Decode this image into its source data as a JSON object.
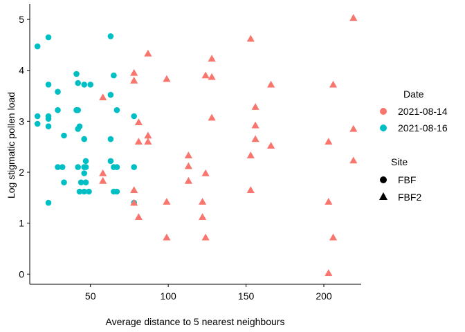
{
  "chart_data": {
    "type": "scatter",
    "title": "",
    "xlabel": "Average distance to 5 nearest neighbours",
    "ylabel": "Log stigmatic pollen load",
    "xlim": [
      11,
      224
    ],
    "ylim": [
      -0.2,
      5.3
    ],
    "x_ticks": [
      50,
      100,
      150,
      200
    ],
    "y_ticks": [
      0,
      1,
      2,
      3,
      4,
      5
    ],
    "grid": false,
    "legend_placement": "right",
    "legends": {
      "date": {
        "title": "Date",
        "entries": [
          {
            "label": "2021-08-14",
            "color": "#F8766D"
          },
          {
            "label": "2021-08-16",
            "color": "#00BFC4"
          }
        ]
      },
      "site": {
        "title": "Site",
        "entries": [
          {
            "label": "FBF",
            "shape": "circle"
          },
          {
            "label": "FBF2",
            "shape": "triangle"
          }
        ]
      }
    },
    "series": [
      {
        "date": "2021-08-14",
        "site": "FBF",
        "color": "#F8766D",
        "shape": "circle",
        "points": []
      },
      {
        "date": "2021-08-16",
        "site": "FBF",
        "color": "#00BFC4",
        "shape": "circle",
        "points": [
          [
            16,
            4.47
          ],
          [
            16,
            3.1
          ],
          [
            16,
            2.95
          ],
          [
            23,
            4.65
          ],
          [
            23,
            3.72
          ],
          [
            23,
            3.1
          ],
          [
            23,
            3.05
          ],
          [
            23,
            2.9
          ],
          [
            23,
            1.4
          ],
          [
            29,
            3.58
          ],
          [
            29,
            3.22
          ],
          [
            29,
            2.1
          ],
          [
            32,
            2.1
          ],
          [
            33,
            2.72
          ],
          [
            33,
            1.8
          ],
          [
            41,
            3.93
          ],
          [
            41,
            3.22
          ],
          [
            42,
            3.75
          ],
          [
            42,
            3.22
          ],
          [
            42,
            2.85
          ],
          [
            42,
            2.1
          ],
          [
            43,
            2.9
          ],
          [
            43,
            1.62
          ],
          [
            44,
            1.8
          ],
          [
            46,
            3.72
          ],
          [
            46,
            2.65
          ],
          [
            46,
            2.1
          ],
          [
            46,
            1.98
          ],
          [
            46,
            1.62
          ],
          [
            47,
            2.22
          ],
          [
            47,
            2.1
          ],
          [
            47,
            1.8
          ],
          [
            49,
            1.62
          ],
          [
            50,
            3.72
          ],
          [
            63,
            4.67
          ],
          [
            63,
            3.52
          ],
          [
            63,
            2.65
          ],
          [
            63,
            2.22
          ],
          [
            65,
            3.9
          ],
          [
            65,
            2.1
          ],
          [
            65,
            1.62
          ],
          [
            67,
            3.22
          ],
          [
            67,
            2.1
          ],
          [
            67,
            1.62
          ],
          [
            78,
            3.1
          ],
          [
            78,
            2.1
          ],
          [
            78,
            1.4
          ]
        ]
      },
      {
        "date": "2021-08-14",
        "site": "FBF2",
        "color": "#F8766D",
        "shape": "triangle",
        "points": [
          [
            58,
            3.47
          ],
          [
            58,
            1.98
          ],
          [
            58,
            1.83
          ],
          [
            78,
            3.95
          ],
          [
            78,
            3.8
          ],
          [
            78,
            1.65
          ],
          [
            78,
            1.4
          ],
          [
            81,
            2.98
          ],
          [
            81,
            2.6
          ],
          [
            81,
            1.12
          ],
          [
            87,
            4.33
          ],
          [
            87,
            2.72
          ],
          [
            87,
            2.6
          ],
          [
            99,
            3.83
          ],
          [
            99,
            1.42
          ],
          [
            99,
            0.72
          ],
          [
            113,
            2.33
          ],
          [
            113,
            2.12
          ],
          [
            113,
            1.83
          ],
          [
            122,
            1.42
          ],
          [
            122,
            1.12
          ],
          [
            124,
            3.9
          ],
          [
            124,
            1.98
          ],
          [
            124,
            0.72
          ],
          [
            128,
            4.23
          ],
          [
            128,
            3.87
          ],
          [
            128,
            3.07
          ],
          [
            153,
            4.62
          ],
          [
            153,
            2.33
          ],
          [
            153,
            1.65
          ],
          [
            156,
            3.28
          ],
          [
            156,
            2.92
          ],
          [
            156,
            2.65
          ],
          [
            166,
            3.72
          ],
          [
            166,
            2.52
          ],
          [
            203,
            2.6
          ],
          [
            203,
            1.42
          ],
          [
            203,
            0.02
          ],
          [
            206,
            3.72
          ],
          [
            206,
            0.72
          ],
          [
            219,
            5.03
          ],
          [
            219,
            2.85
          ],
          [
            219,
            2.23
          ]
        ]
      },
      {
        "date": "2021-08-16",
        "site": "FBF2",
        "color": "#00BFC4",
        "shape": "triangle",
        "points": []
      }
    ]
  }
}
